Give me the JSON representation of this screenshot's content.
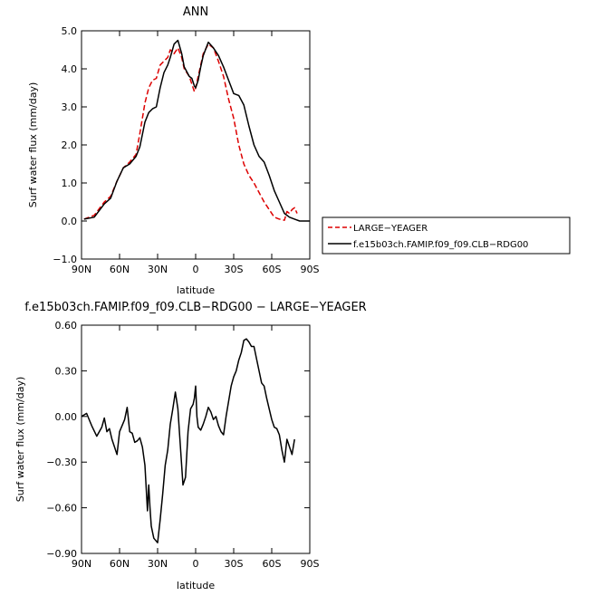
{
  "chart_data": [
    {
      "type": "line",
      "title": "ANN",
      "xlabel": "latitude",
      "ylabel": "Surf water flux (mm/day)",
      "xlim": [
        90,
        -90
      ],
      "ylim": [
        -1.0,
        5.0
      ],
      "x_tick_values": [
        90,
        60,
        30,
        0,
        -30,
        -60,
        -90
      ],
      "x_tick_labels": [
        "90N",
        "60N",
        "30N",
        "0",
        "30S",
        "60S",
        "90S"
      ],
      "y_tick_values": [
        -1,
        0,
        1,
        2,
        3,
        4,
        5
      ],
      "y_tick_labels": [
        "−1.0",
        "0.0",
        "1.0",
        "2.0",
        "3.0",
        "4.0",
        "5.0"
      ],
      "legend_position": "right",
      "series": [
        {
          "name": "LARGE−YEAGER",
          "color": "#dd0000",
          "dash": "dashed",
          "x": [
            88,
            80,
            72,
            67,
            62,
            57,
            52,
            47,
            44,
            40,
            37,
            34,
            31,
            28,
            25,
            22,
            20,
            17,
            14,
            11,
            9,
            5,
            3,
            1,
            0,
            -2,
            -4,
            -6,
            -10,
            -14,
            -18,
            -22,
            -26,
            -30,
            -34,
            -38,
            -42,
            -46,
            -50,
            -54,
            -58,
            -62,
            -66,
            -70,
            -72,
            -74,
            -76,
            -78,
            -80
          ],
          "y": [
            0.05,
            0.15,
            0.5,
            0.65,
            1.05,
            1.4,
            1.55,
            1.75,
            2.3,
            3.1,
            3.5,
            3.7,
            3.75,
            4.1,
            4.2,
            4.3,
            4.5,
            4.4,
            4.55,
            4.3,
            4.0,
            3.8,
            3.6,
            3.4,
            3.5,
            3.8,
            4.1,
            4.4,
            4.65,
            4.55,
            4.2,
            3.8,
            3.2,
            2.7,
            2.0,
            1.5,
            1.2,
            1.0,
            0.75,
            0.5,
            0.3,
            0.1,
            0.05,
            0.02,
            0.25,
            0.2,
            0.3,
            0.35,
            0.2
          ]
        },
        {
          "name": "f.e15b03ch.FAMIP.f09_f09.CLB−RDG00",
          "color": "#000000",
          "dash": "solid",
          "x": [
            88,
            80,
            72,
            67,
            62,
            57,
            52,
            47,
            44,
            40,
            37,
            34,
            31,
            28,
            25,
            22,
            20,
            17,
            14,
            11,
            9,
            5,
            3,
            1,
            0,
            -2,
            -4,
            -6,
            -10,
            -14,
            -18,
            -22,
            -26,
            -30,
            -34,
            -38,
            -42,
            -46,
            -50,
            -54,
            -58,
            -62,
            -66,
            -70,
            -74,
            -78,
            -82,
            -86,
            -90
          ],
          "y": [
            0.05,
            0.1,
            0.45,
            0.6,
            1.05,
            1.4,
            1.5,
            1.7,
            1.95,
            2.6,
            2.85,
            2.95,
            3.0,
            3.5,
            3.9,
            4.1,
            4.3,
            4.65,
            4.75,
            4.4,
            4.05,
            3.8,
            3.75,
            3.55,
            3.5,
            3.7,
            4.05,
            4.35,
            4.7,
            4.55,
            4.35,
            4.05,
            3.7,
            3.35,
            3.3,
            3.05,
            2.5,
            2.0,
            1.7,
            1.55,
            1.2,
            0.8,
            0.5,
            0.2,
            0.1,
            0.05,
            0.0,
            0.0,
            0.0
          ]
        }
      ]
    },
    {
      "type": "line",
      "title": "f.e15b03ch.FAMIP.f09_f09.CLB−RDG00 − LARGE−YEAGER",
      "xlabel": "latitude",
      "ylabel": "Surf water flux (mm/day)",
      "xlim": [
        90,
        -90
      ],
      "ylim": [
        -0.9,
        0.6
      ],
      "x_tick_values": [
        90,
        60,
        30,
        0,
        -30,
        -60,
        -90
      ],
      "x_tick_labels": [
        "90N",
        "60N",
        "30N",
        "0",
        "30S",
        "60S",
        "90S"
      ],
      "y_tick_values": [
        -0.9,
        -0.6,
        -0.3,
        0.0,
        0.3,
        0.6
      ],
      "y_tick_labels": [
        "−0.90",
        "−0.60",
        "−0.30",
        "0.00",
        "0.30",
        "0.60"
      ],
      "series": [
        {
          "color": "#000000",
          "dash": "solid",
          "x": [
            90,
            86,
            82,
            78,
            74,
            72,
            70,
            68,
            66,
            64,
            62,
            60,
            58,
            56,
            54,
            52,
            50,
            48,
            46,
            44,
            42,
            40,
            38,
            37,
            36,
            35,
            33,
            30,
            28,
            26,
            24,
            22,
            20,
            18,
            16,
            14,
            12,
            10,
            8,
            6,
            4,
            2,
            1,
            0,
            -1,
            -2,
            -4,
            -6,
            -8,
            -10,
            -12,
            -14,
            -16,
            -18,
            -20,
            -22,
            -24,
            -26,
            -28,
            -30,
            -32,
            -34,
            -36,
            -38,
            -40,
            -42,
            -44,
            -46,
            -48,
            -50,
            -52,
            -54,
            -56,
            -58,
            -60,
            -62,
            -64,
            -66,
            -68,
            -70,
            -72,
            -74,
            -76,
            -78
          ],
          "y": [
            0.0,
            0.02,
            -0.06,
            -0.13,
            -0.07,
            -0.01,
            -0.1,
            -0.08,
            -0.15,
            -0.2,
            -0.25,
            -0.1,
            -0.06,
            -0.02,
            0.06,
            -0.1,
            -0.11,
            -0.17,
            -0.16,
            -0.14,
            -0.2,
            -0.32,
            -0.62,
            -0.45,
            -0.6,
            -0.72,
            -0.8,
            -0.83,
            -0.68,
            -0.51,
            -0.32,
            -0.22,
            -0.05,
            0.05,
            0.16,
            0.05,
            -0.2,
            -0.45,
            -0.4,
            -0.1,
            0.05,
            0.08,
            0.12,
            0.2,
            0.0,
            -0.07,
            -0.09,
            -0.05,
            0.0,
            0.06,
            0.03,
            -0.02,
            0.0,
            -0.06,
            -0.1,
            -0.12,
            0.0,
            0.1,
            0.2,
            0.26,
            0.3,
            0.37,
            0.42,
            0.5,
            0.51,
            0.49,
            0.46,
            0.46,
            0.38,
            0.3,
            0.22,
            0.2,
            0.12,
            0.05,
            -0.02,
            -0.07,
            -0.08,
            -0.12,
            -0.22,
            -0.3,
            -0.15,
            -0.2,
            -0.25,
            -0.15
          ]
        }
      ]
    }
  ]
}
